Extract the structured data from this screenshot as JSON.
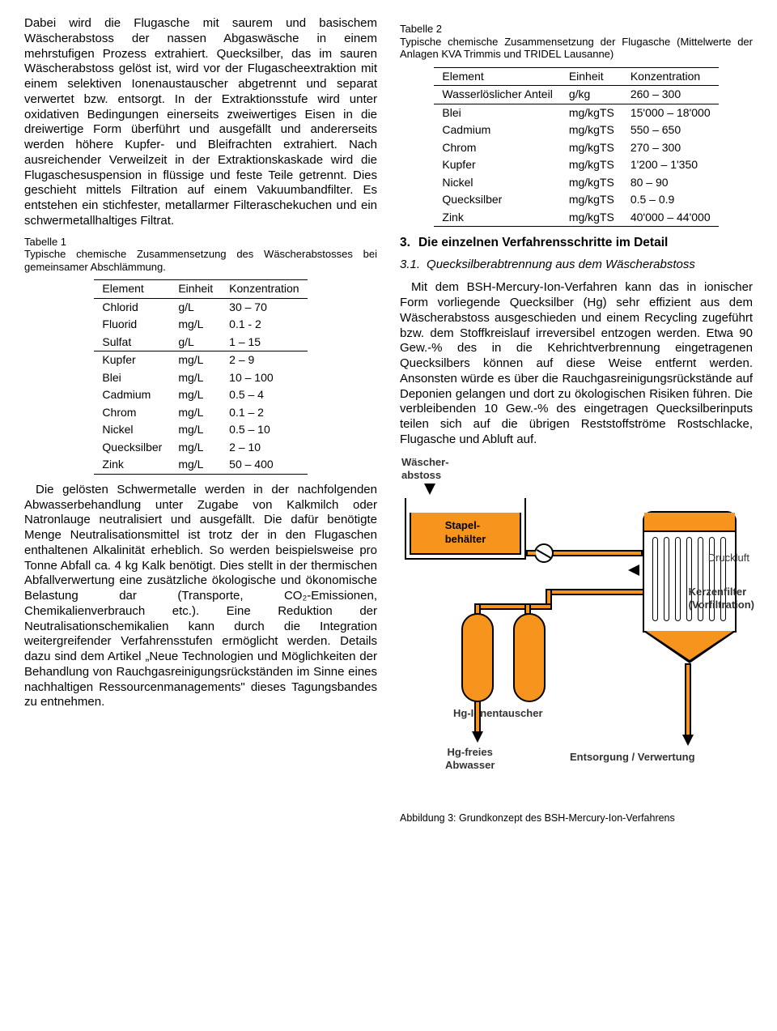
{
  "col1": {
    "p1": "Dabei wird die Flugasche mit saurem und basischem Wäscherabstoss der nassen Abgaswäsche in einem mehrstufigen Prozess extrahiert. Quecksilber, das im sauren Wäscherabstoss gelöst ist, wird vor der Flug­ascheextraktion mit einem selektiven Ionenaus­tauscher abgetrennt und separat verwertet bzw. entsorgt. In der Extraktionsstufe wird unter oxidativen Bedingungen einerseits zweiwertiges Eisen in die dreiwertige Form überführt und ausgefällt und andererseits werden höhere Kupfer- und Bleifrachten extrahiert. Nach ausreichender Verweilzeit in der Extraktions­kaskade wird die Flugaschesuspension in flüssige und feste Teile getrennt. Dies geschieht mittels Filtration auf einem Vakuumbandfilter. Es entstehen ein stichfester, metallarmer Filter­aschekuchen und ein schwermetallhaltiges Filtrat.",
    "t1cap": "Tabelle 1\nTypische chemische Zusammensetzung des Wäscherabstosses bei gemeinsamer Abschlämmung.",
    "t1": {
      "headers": [
        "Element",
        "Einheit",
        "Konzentration"
      ],
      "rows": [
        [
          "Chlorid",
          "g/L",
          "30 – 70"
        ],
        [
          "Fluorid",
          "mg/L",
          "0.1 - 2"
        ],
        [
          "Sulfat",
          "g/L",
          "1 – 15"
        ],
        [
          "Kupfer",
          "mg/L",
          "2 – 9"
        ],
        [
          "Blei",
          "mg/L",
          "10 – 100"
        ],
        [
          "Cadmium",
          "mg/L",
          "0.5 – 4"
        ],
        [
          "Chrom",
          "mg/L",
          "0.1 – 2"
        ],
        [
          "Nickel",
          "mg/L",
          "0.5 – 10"
        ],
        [
          "Quecksilber",
          "mg/L",
          "2 – 10"
        ],
        [
          "Zink",
          "mg/L",
          "50 – 400"
        ]
      ]
    },
    "p2": "Die gelösten Schwermetalle werden in der nachfolgenden Abwasserbehandlung unter Zugabe von Kalkmilch oder Natronlauge neutralisiert und ausgefällt. Die dafür benötigte Menge Neutralisationsmittel ist trotz der in den Flugaschen enthaltenen Alkalinität erheblich. So werden beispielsweise pro Tonne Abfall ca. 4 kg Kalk benötigt. Dies stellt in der thermischen Abfallverwertung eine zusätzliche ökologische und ökonomische Belastung dar (Transporte, CO₂-Emissionen, Chemikalienverbrauch etc.). Eine Reduktion der Neutralisationschemikalien kann durch die Integration weitergreifender Verfahrensstufen ermöglicht werden. Details dazu sind dem Artikel „Neue Technologien und Möglichkeiten der Behandlung von Rauchgas­reinigungsrückständen im Sinne eines nach­haltigen Ressourcenmanagements\" dieses Tagungsbandes zu entnehmen."
  },
  "col2": {
    "t2cap": "Tabelle 2\nTypische chemische Zusammensetzung der Flugasche (Mittelwerte der Anlagen KVA Trimmis und TRIDEL Lausanne)",
    "t2": {
      "headers": [
        "Element",
        "Einheit",
        "Konzentration"
      ],
      "rows": [
        [
          "Wasserlöslicher Anteil",
          "g/kg",
          "260 – 300"
        ],
        [
          "Blei",
          "mg/kgTS",
          "15'000 – 18'000"
        ],
        [
          "Cadmium",
          "mg/kgTS",
          "550 – 650"
        ],
        [
          "Chrom",
          "mg/kgTS",
          "270 – 300"
        ],
        [
          "Kupfer",
          "mg/kgTS",
          "1'200 – 1'350"
        ],
        [
          "Nickel",
          "mg/kgTS",
          "80 – 90"
        ],
        [
          "Quecksilber",
          "mg/kgTS",
          "0.5 – 0.9"
        ],
        [
          "Zink",
          "mg/kgTS",
          "40'000 – 44'000"
        ]
      ]
    },
    "sec3_num": "3.",
    "sec3_title": "Die einzelnen Verfahrensschritte im Detail",
    "sec31_num": "3.1.",
    "sec31_title": "Quecksilberabtrennung aus dem Wäscher­abstoss",
    "p3": "Mit dem BSH-Mercury-Ion-Verfahren kann das in ionischer Form vorliegende Quecksilber (Hg) sehr effizient aus dem Wäscherabstoss ausgeschieden und einem Recycling zugeführt bzw. dem Stoffkreislauf irreversibel entzogen werden. Etwa 90 Gew.-% des in die Kehricht­verbrennung eingetragenen Quecksilbers können auf diese Weise entfernt werden. Ansonsten würde es über die Rauchgas­reinigungsrückstände auf Deponien gelangen und dort zu ökologischen Risiken führen. Die verbleibenden 10 Gew.-% des eingetragen Quecksilberinputs teilen sich auf die übrigen Reststoffströme Rostschlacke, Flugasche und Abluft auf.",
    "diagram": {
      "orange": "#f7941e",
      "labels": {
        "wascher": "Wäscher-\nabstoss",
        "stapel": "Stapel-\nbehälter",
        "ionex": "Hg-Ionentauscher",
        "druckluft": "Druckluft",
        "kerzen": "Kerzenfilter\n(Vorfiltration)",
        "abwasser": "Hg-freies\nAbwasser",
        "entsorg": "Entsorgung / Verwertung"
      }
    },
    "figcap": "Abbildung 3:    Grundkonzept des BSH-Mercury-Ion-Verfahrens"
  }
}
